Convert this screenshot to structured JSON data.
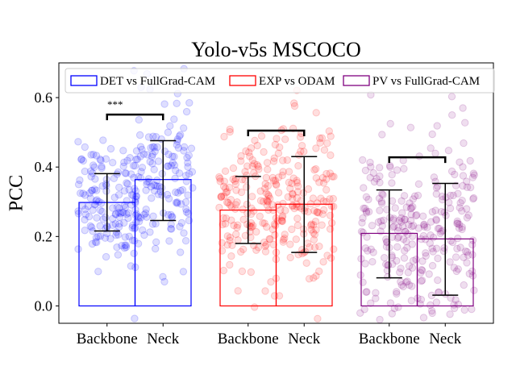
{
  "chart_data": {
    "type": "bar",
    "title": "Yolo-v5s MSCOCO",
    "xlabel": "",
    "ylabel": "PCC",
    "ylim": [
      -0.05,
      0.7
    ],
    "yticks": [
      "0.0",
      "0.2",
      "0.4",
      "0.6"
    ],
    "grid": false,
    "legend_position": "top",
    "groups": [
      {
        "name": "DET vs FullGrad-CAM",
        "color": "#0000ff",
        "categories": [
          "Backbone",
          "Neck"
        ],
        "values": [
          0.298,
          0.364
        ],
        "error_low": [
          0.216,
          0.246
        ],
        "error_high": [
          0.381,
          0.476
        ],
        "significance": "***"
      },
      {
        "name": "EXP vs ODAM",
        "color": "#ff0000",
        "categories": [
          "Backbone",
          "Neck"
        ],
        "values": [
          0.276,
          0.293
        ],
        "error_low": [
          0.18,
          0.154
        ],
        "error_high": [
          0.373,
          0.43
        ],
        "significance": ""
      },
      {
        "name": "PV vs FullGrad-CAM",
        "color": "#800080",
        "categories": [
          "Backbone",
          "Neck"
        ],
        "values": [
          0.209,
          0.193
        ],
        "error_low": [
          0.081,
          0.031
        ],
        "error_high": [
          0.334,
          0.353
        ],
        "significance": ""
      }
    ],
    "scatter_samples_per_bar": 150
  }
}
